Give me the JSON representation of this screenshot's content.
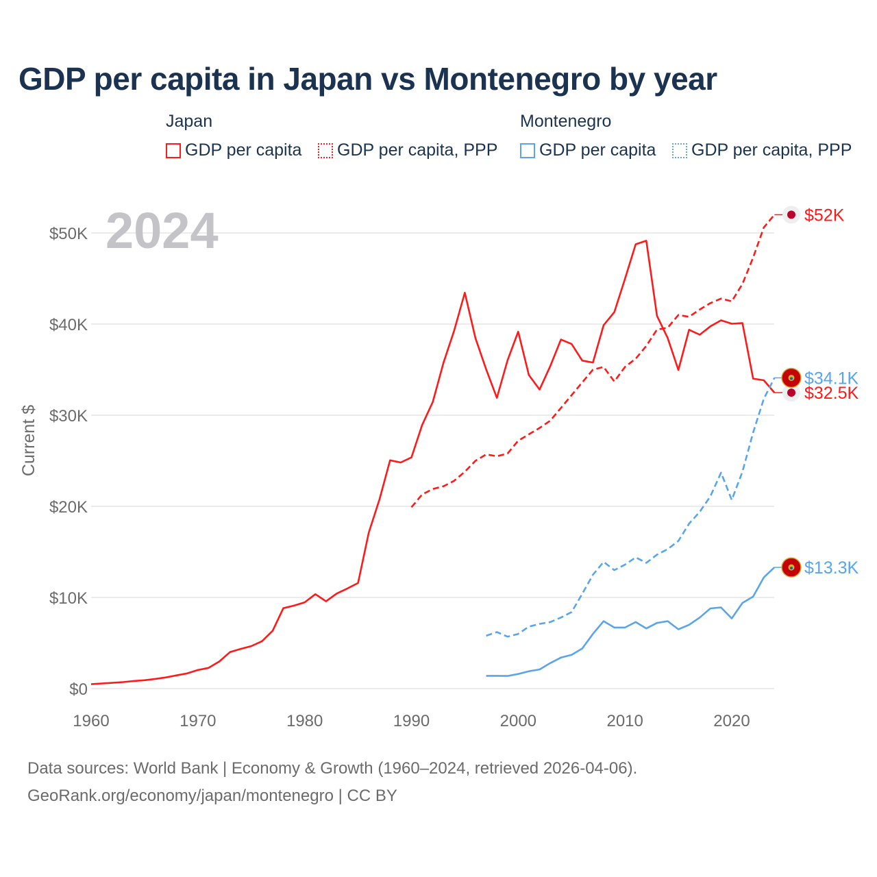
{
  "title": "GDP per capita in Japan vs Montenegro by year",
  "legend": {
    "groups": [
      {
        "name": "Japan",
        "color": "#ff1a1a",
        "items": [
          "GDP per capita",
          "GDP per capita, PPP"
        ]
      },
      {
        "name": "Montenegro",
        "color": "#5aa5ea",
        "items": [
          "GDP per capita",
          "GDP per capita, PPP"
        ]
      }
    ]
  },
  "year_label": "2024",
  "footer": {
    "line1": "Data sources: World Bank | Economy & Growth (1960–2024, retrieved 2026-04-06).",
    "line2": "GeoRank.org/economy/japan/montenegro | CC BY"
  },
  "chart_data": {
    "type": "line",
    "title": "GDP per capita in Japan vs Montenegro by year",
    "xlabel": "",
    "ylabel": "Current $",
    "xlim": [
      1960,
      2024
    ],
    "ylim": [
      0,
      50000
    ],
    "x_ticks": [
      1960,
      1970,
      1980,
      1990,
      2000,
      2010,
      2020
    ],
    "x_tick_labels": [
      "1960",
      "1970",
      "1980",
      "1990",
      "2000",
      "2010",
      "2020"
    ],
    "y_ticks": [
      0,
      10000,
      20000,
      30000,
      40000,
      50000
    ],
    "y_tick_labels": [
      "$0",
      "$10K",
      "$20K",
      "$30K",
      "$40K",
      "$50K"
    ],
    "grid": true,
    "legend_position": "top",
    "series": [
      {
        "name": "Japan GDP per capita",
        "color": "#ff1a1a",
        "dash": "solid",
        "end_label": "$32.5K",
        "flag": "japan",
        "start_year": 1960,
        "values": [
          479,
          563,
          634,
          718,
          835,
          919,
          1058,
          1228,
          1450,
          1669,
          2037,
          2272,
          2967,
          3997,
          4355,
          4659,
          5197,
          6335,
          8821,
          9105,
          9463,
          10361,
          9578,
          10425,
          10984,
          11585,
          17112,
          20745,
          25052,
          24813,
          25371,
          28925,
          31465,
          35766,
          39269,
          43440,
          38437,
          35022,
          31903,
          36027,
          39169,
          34406,
          32821,
          35387,
          38299,
          37813,
          35991,
          35779,
          39876,
          41309,
          44968,
          48760,
          49145,
          40898,
          38475,
          34961,
          39375,
          38834,
          39751,
          40416,
          40041,
          40115,
          34017,
          33834,
          32476
        ]
      },
      {
        "name": "Japan GDP per capita, PPP",
        "color": "#ff1a1a",
        "dash": "dashed",
        "end_label": "$52K",
        "flag": "japan",
        "start_year": 1990,
        "values": [
          19900,
          21300,
          21900,
          22200,
          22800,
          23800,
          25000,
          25700,
          25500,
          25800,
          27200,
          27900,
          28600,
          29400,
          30800,
          32200,
          33600,
          35000,
          35300,
          33700,
          35300,
          36200,
          37600,
          39400,
          39600,
          41000,
          40800,
          41600,
          42300,
          42800,
          42500,
          44400,
          47300,
          50600,
          52000
        ]
      },
      {
        "name": "Montenegro GDP per capita",
        "color": "#5aa5ea",
        "dash": "solid",
        "end_label": "$13.3K",
        "flag": "montenegro",
        "start_year": 1997,
        "values": [
          1400,
          1400,
          1380,
          1600,
          1900,
          2100,
          2800,
          3400,
          3700,
          4400,
          6000,
          7400,
          6700,
          6700,
          7300,
          6600,
          7200,
          7400,
          6500,
          7000,
          7800,
          8800,
          8900,
          7700,
          9400,
          10100,
          12200,
          13300
        ]
      },
      {
        "name": "Montenegro GDP per capita, PPP",
        "color": "#5aa5ea",
        "dash": "dashed",
        "end_label": "$34.1K",
        "flag": "montenegro",
        "start_year": 1997,
        "values": [
          5800,
          6200,
          5700,
          6000,
          6800,
          7100,
          7300,
          7800,
          8400,
          10400,
          12500,
          13900,
          13000,
          13600,
          14400,
          13800,
          14700,
          15300,
          16200,
          18100,
          19400,
          21100,
          23700,
          20700,
          23800,
          28100,
          31800,
          34100
        ]
      }
    ]
  }
}
